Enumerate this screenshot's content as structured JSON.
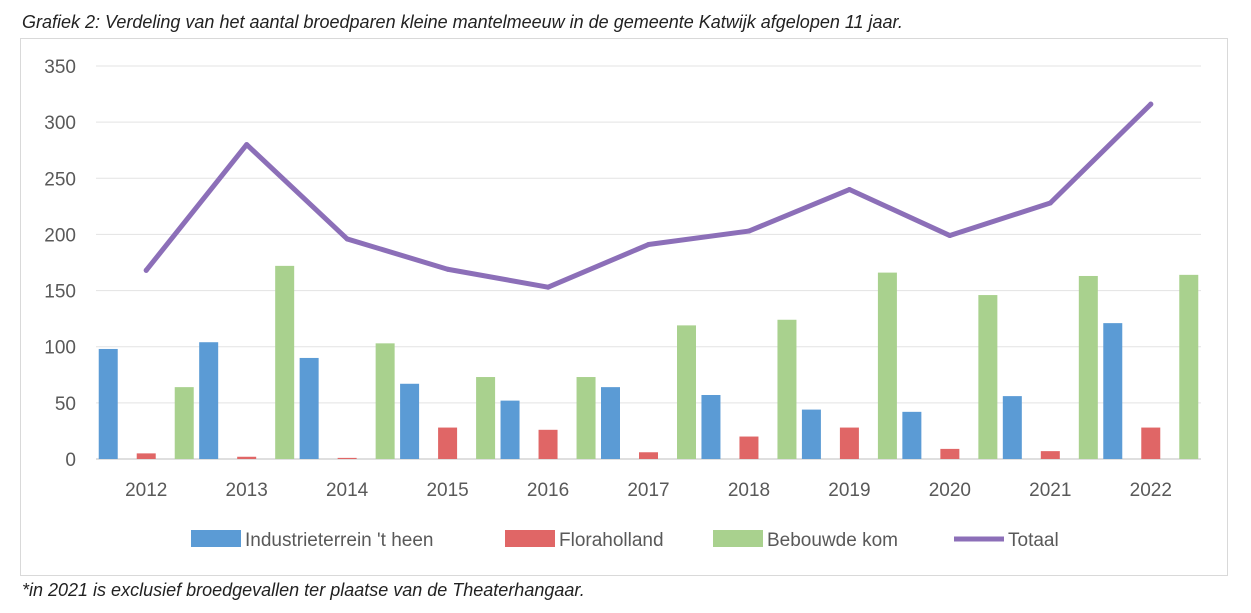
{
  "caption": "Grafiek 2: Verdeling van het aantal broedparen kleine mantelmeeuw in de gemeente Katwijk afgelopen 11 jaar.",
  "footnote": "*in 2021 is exclusief broedgevallen ter plaatse van de Theaterhangaar.",
  "chart_data": {
    "type": "bar",
    "title": "",
    "xlabel": "",
    "ylabel": "",
    "ylim": [
      0,
      350
    ],
    "yticks": [
      0,
      50,
      100,
      150,
      200,
      250,
      300,
      350
    ],
    "grid": true,
    "legend_position": "bottom",
    "categories": [
      "2012",
      "2013",
      "2014",
      "2015",
      "2016",
      "2017",
      "2018",
      "2019",
      "2020",
      "2021",
      "2022"
    ],
    "series": [
      {
        "name": "Industrieterrein 't heen",
        "kind": "bar",
        "color": "#5b9bd5",
        "values": [
          98,
          104,
          90,
          67,
          52,
          64,
          57,
          44,
          42,
          56,
          121
        ]
      },
      {
        "name": "Floraholland",
        "kind": "bar",
        "color": "#e06666",
        "values": [
          5,
          2,
          1,
          28,
          26,
          6,
          20,
          28,
          9,
          7,
          28
        ]
      },
      {
        "name": "Bebouwde kom",
        "kind": "bar",
        "color": "#a9d18e",
        "values": [
          64,
          172,
          103,
          73,
          73,
          119,
          124,
          166,
          146,
          163,
          164
        ]
      },
      {
        "name": "Totaal",
        "kind": "line",
        "color": "#8c6fb8",
        "values": [
          168,
          280,
          196,
          169,
          153,
          191,
          203,
          240,
          199,
          228,
          316
        ]
      }
    ]
  }
}
